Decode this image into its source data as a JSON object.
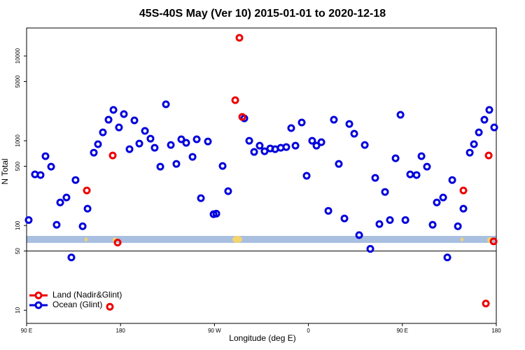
{
  "chart_data": {
    "type": "scatter",
    "title": "45S-40S May (Ver 10)   2015-01-01 to 2020-12-18",
    "x_label": "Longitude (deg E)",
    "y_label": "N Total",
    "log_y": true,
    "legend": "bottom-left",
    "xlim": [
      90,
      540
    ],
    "xticks": [
      {
        "value": 90,
        "label": "90 E"
      },
      {
        "value": 180,
        "label": "180"
      },
      {
        "value": 270,
        "label": "90 W"
      },
      {
        "value": 360,
        "label": "0"
      },
      {
        "value": 450,
        "label": "90 E"
      },
      {
        "value": 540,
        "label": "180"
      }
    ],
    "ylim": [
      7,
      21400
    ],
    "yticks": [
      10,
      50,
      100,
      500,
      1000,
      5000,
      10000
    ],
    "reference_line": 50,
    "series": [
      {
        "name": "Land (Nadir&Glint)",
        "color": "#ee0000",
        "x": [
          147.7,
          172.5,
          177.2,
          289.9,
          293.9,
          296.6,
          169.8,
          508.5,
          530.0,
          532.7,
          537.4
        ],
        "values": [
          259,
          670,
          63,
          3013,
          16400,
          1910,
          11,
          259,
          12,
          670,
          65
        ]
      },
      {
        "name": "Ocean (Glint)",
        "color": "#0000dd",
        "x": [
          92.0,
          98.0,
          103.4,
          108.1,
          113.5,
          118.8,
          122.2,
          128.2,
          132.9,
          136.9,
          143.7,
          148.4,
          154.4,
          158.4,
          163.1,
          168.5,
          173.2,
          178.5,
          183.2,
          188.6,
          193.3,
          198.0,
          203.4,
          208.7,
          212.7,
          218.1,
          223.5,
          228.2,
          233.5,
          238.2,
          242.9,
          249.0,
          253.0,
          257.0,
          263.7,
          269.1,
          271.8,
          277.8,
          283.1,
          298.6,
          303.3,
          308.0,
          313.3,
          318.0,
          323.4,
          328.1,
          333.5,
          338.8,
          343.5,
          347.6,
          353.6,
          358.3,
          363.6,
          367.7,
          372.4,
          379.1,
          384.4,
          389.1,
          394.5,
          399.2,
          403.9,
          408.6,
          414.0,
          419.3,
          424.0,
          428.0,
          433.4,
          438.1,
          443.5,
          448.2,
          452.9,
          457.5,
          463.6,
          468.3,
          473.6,
          479.0,
          483.0,
          489.1,
          493.1,
          497.8,
          503.2,
          508.5,
          514.6,
          518.6,
          523.3,
          528.6,
          533.3,
          538.0
        ],
        "values": [
          116,
          401,
          394,
          658,
          494,
          102,
          187,
          214,
          42,
          344,
          98,
          158,
          724,
          911,
          1256,
          1770,
          2312,
          1436,
          2062,
          796,
          1738,
          927,
          1306,
          1059,
          826,
          494,
          2692,
          892,
          533,
          1040,
          945,
          646,
          1040,
          210,
          981,
          136,
          138,
          504,
          254,
          1838,
          1000,
          738,
          875,
          752,
          811,
          796,
          826,
          843,
          1410,
          875,
          1641,
          386,
          1000,
          875,
          962,
          149,
          1770,
          533,
          121,
          1578,
          1210,
          77,
          892,
          53,
          365,
          104,
          249,
          116,
          621,
          2025,
          116,
          401,
          394,
          658,
          494,
          102,
          187,
          214,
          42,
          344,
          98,
          158,
          724,
          911,
          1256,
          1770,
          2312,
          1436
        ]
      }
    ]
  }
}
